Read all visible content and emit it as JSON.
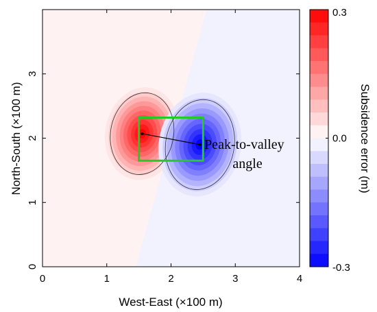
{
  "chart_data": {
    "type": "heatmap",
    "title": "",
    "xlabel": "West-East (×100 m)",
    "ylabel": "North-South (×100 m)",
    "xlim": [
      0,
      4
    ],
    "ylim": [
      0,
      4
    ],
    "xticks": [
      "0",
      "1",
      "2",
      "3",
      "4"
    ],
    "yticks": [
      "0",
      "1",
      "2",
      "3"
    ],
    "xtick_values": [
      0,
      1,
      2,
      3,
      4
    ],
    "ytick_values": [
      0,
      1,
      2,
      3
    ],
    "colorbar": {
      "label": "Subsidence error (m)",
      "min": -0.3,
      "max": 0.3,
      "tick_labels": [
        "0.3",
        "0.0",
        "-0.3"
      ],
      "tick_values": [
        0.3,
        0.0,
        -0.3
      ],
      "levels": 20,
      "colors": {
        "positive": "#ff0000",
        "zero": "#ffffff",
        "negative": "#0000ff"
      }
    },
    "features": [
      {
        "kind": "peak",
        "center": [
          1.55,
          2.07
        ],
        "value": 0.3
      },
      {
        "kind": "valley",
        "center": [
          2.45,
          1.9
        ],
        "value": -0.3
      }
    ],
    "background": {
      "left_value": 0.015,
      "right_value": -0.015,
      "boundary_line": [
        [
          1.45,
          0
        ],
        [
          2.55,
          4
        ]
      ]
    },
    "highlight_box": {
      "x": [
        1.5,
        2.5
      ],
      "y": [
        1.65,
        2.32
      ],
      "color": "#22cc22"
    },
    "arrow": {
      "from": [
        1.55,
        2.07
      ],
      "to": [
        2.45,
        1.9
      ]
    },
    "annotation": {
      "lines": [
        "Peak-to-valley",
        "angle"
      ],
      "anchor": [
        2.55,
        1.9
      ]
    }
  }
}
